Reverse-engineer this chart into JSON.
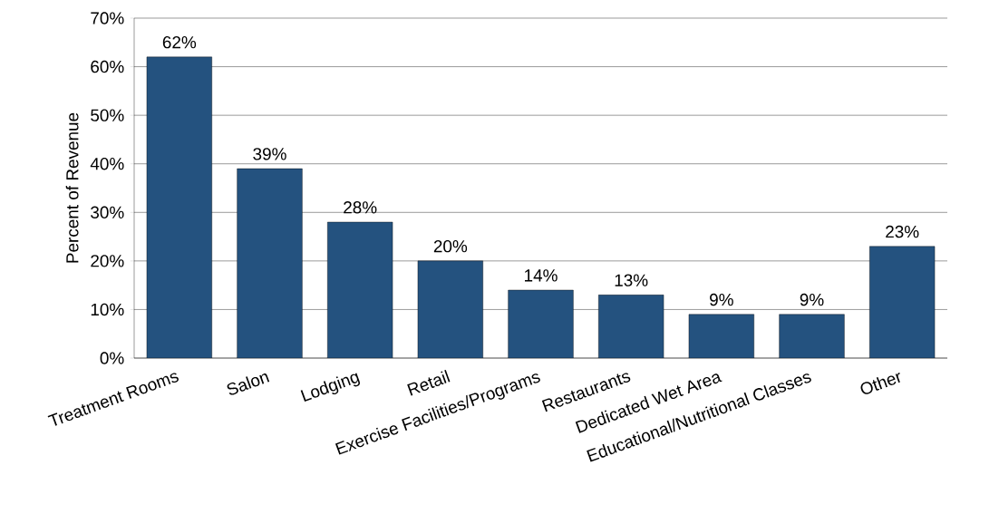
{
  "chart_data": {
    "type": "bar",
    "ylabel": "Percent of Revenue",
    "categories": [
      "Treatment Rooms",
      "Salon",
      "Lodging",
      "Retail",
      "Exercise Facilities/Programs",
      "Restaurants",
      "Dedicated Wet Area",
      "Educational/Nutritional Classes",
      "Other"
    ],
    "values": [
      62,
      39,
      28,
      20,
      14,
      13,
      9,
      9,
      23
    ],
    "value_labels": [
      "62%",
      "39%",
      "28%",
      "20%",
      "14%",
      "13%",
      "9%",
      "9%",
      "23%"
    ],
    "color": "#24527f",
    "ylim": [
      0,
      70
    ],
    "yticks": [
      {
        "value": 0,
        "label": "0%"
      },
      {
        "value": 10,
        "label": "10%"
      },
      {
        "value": 20,
        "label": "20%"
      },
      {
        "value": 30,
        "label": "30%"
      },
      {
        "value": 40,
        "label": "40%"
      },
      {
        "value": 50,
        "label": "50%"
      },
      {
        "value": 60,
        "label": "60%"
      },
      {
        "value": 70,
        "label": "70%"
      }
    ],
    "grid": "y"
  }
}
